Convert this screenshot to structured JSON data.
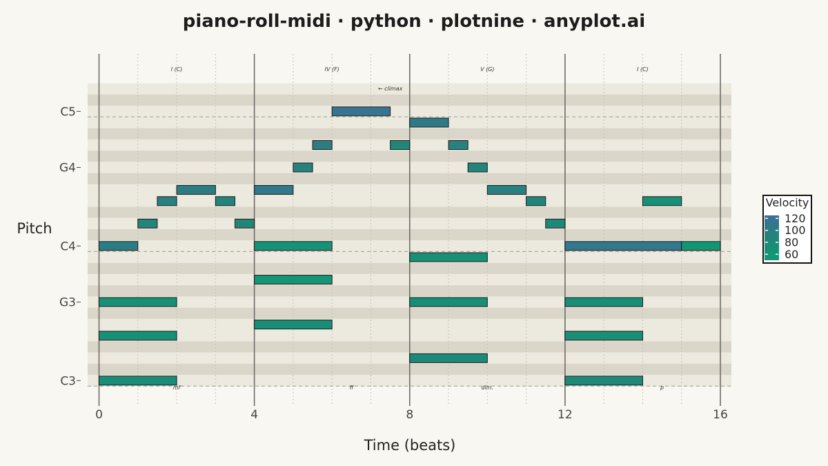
{
  "title": "piano-roll-midi · python · plotnine · anyplot.ai",
  "chart_data": {
    "type": "piano-roll",
    "xlabel": "Time (beats)",
    "ylabel": "Pitch",
    "xlim": [
      0,
      16
    ],
    "ylim": [
      47.5,
      74.5
    ],
    "x_ticks": [
      0,
      4,
      8,
      12,
      16
    ],
    "y_ticks": [
      {
        "pitch": 48,
        "label": "C3"
      },
      {
        "pitch": 55,
        "label": "G3"
      },
      {
        "pitch": 60,
        "label": "C4"
      },
      {
        "pitch": 67,
        "label": "G4"
      },
      {
        "pitch": 72,
        "label": "C5"
      }
    ],
    "bar_lines": [
      0,
      4,
      8,
      12,
      16
    ],
    "beat_lines": [
      1,
      2,
      3,
      5,
      6,
      7,
      9,
      10,
      11,
      13,
      14,
      15
    ],
    "black_keys": [
      49,
      51,
      54,
      56,
      58,
      61,
      63,
      66,
      68,
      70,
      73
    ],
    "octave_markers": [
      48,
      60,
      72
    ],
    "chord_labels": [
      {
        "x": 2,
        "text": "I  (C)"
      },
      {
        "x": 6,
        "text": "IV  (F)"
      },
      {
        "x": 10,
        "text": "V  (G)"
      },
      {
        "x": 14,
        "text": "I  (C)"
      }
    ],
    "dynamics": [
      {
        "x": 2,
        "text": "mf"
      },
      {
        "x": 6.5,
        "text": "ff"
      },
      {
        "x": 10,
        "text": "dim."
      },
      {
        "x": 14.5,
        "text": "p"
      }
    ],
    "climax_label": {
      "x": 7.5,
      "pitch": 73,
      "text": "← climax"
    },
    "legend": {
      "title": "Velocity",
      "entries": [
        "120",
        "100",
        "80",
        "60"
      ],
      "range": [
        50,
        125
      ],
      "colors": [
        "#0d9c73",
        "#228578",
        "#3d6e98"
      ]
    },
    "notes": [
      {
        "start": 0,
        "end": 1,
        "pitch": 60,
        "velocity": 100
      },
      {
        "start": 1,
        "end": 1.5,
        "pitch": 62,
        "velocity": 90
      },
      {
        "start": 1.5,
        "end": 2,
        "pitch": 64,
        "velocity": 95
      },
      {
        "start": 2,
        "end": 3,
        "pitch": 65,
        "velocity": 100
      },
      {
        "start": 3,
        "end": 3.5,
        "pitch": 64,
        "velocity": 90
      },
      {
        "start": 3.5,
        "end": 4,
        "pitch": 62,
        "velocity": 85
      },
      {
        "start": 4,
        "end": 5,
        "pitch": 65,
        "velocity": 110
      },
      {
        "start": 5,
        "end": 5.5,
        "pitch": 67,
        "velocity": 95
      },
      {
        "start": 5.5,
        "end": 6,
        "pitch": 69,
        "velocity": 100
      },
      {
        "start": 6,
        "end": 7.5,
        "pitch": 72,
        "velocity": 115
      },
      {
        "start": 7.5,
        "end": 8,
        "pitch": 69,
        "velocity": 85
      },
      {
        "start": 8,
        "end": 9,
        "pitch": 71,
        "velocity": 105
      },
      {
        "start": 9,
        "end": 9.5,
        "pitch": 69,
        "velocity": 95
      },
      {
        "start": 9.5,
        "end": 10,
        "pitch": 67,
        "velocity": 90
      },
      {
        "start": 10,
        "end": 11,
        "pitch": 65,
        "velocity": 95
      },
      {
        "start": 11,
        "end": 11.5,
        "pitch": 64,
        "velocity": 85
      },
      {
        "start": 11.5,
        "end": 12,
        "pitch": 62,
        "velocity": 80
      },
      {
        "start": 12,
        "end": 15,
        "pitch": 60,
        "velocity": 110
      },
      {
        "start": 15,
        "end": 16,
        "pitch": 60,
        "velocity": 60
      },
      {
        "start": 14,
        "end": 15,
        "pitch": 64,
        "velocity": 70
      },
      {
        "start": 0,
        "end": 2,
        "pitch": 55,
        "velocity": 70
      },
      {
        "start": 0,
        "end": 2,
        "pitch": 52,
        "velocity": 68
      },
      {
        "start": 0,
        "end": 2,
        "pitch": 48,
        "velocity": 75
      },
      {
        "start": 4,
        "end": 6,
        "pitch": 60,
        "velocity": 65
      },
      {
        "start": 4,
        "end": 6,
        "pitch": 57,
        "velocity": 62
      },
      {
        "start": 4,
        "end": 6,
        "pitch": 53,
        "velocity": 72
      },
      {
        "start": 8,
        "end": 10,
        "pitch": 59,
        "velocity": 70
      },
      {
        "start": 8,
        "end": 10,
        "pitch": 55,
        "velocity": 72
      },
      {
        "start": 8,
        "end": 10,
        "pitch": 50,
        "velocity": 80
      },
      {
        "start": 12,
        "end": 14,
        "pitch": 55,
        "velocity": 72
      },
      {
        "start": 12,
        "end": 14,
        "pitch": 52,
        "velocity": 73
      },
      {
        "start": 12,
        "end": 14,
        "pitch": 48,
        "velocity": 82
      }
    ]
  }
}
